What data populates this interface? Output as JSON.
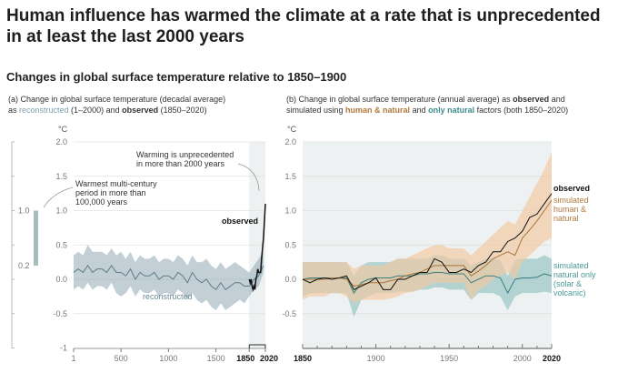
{
  "title": "Human influence has warmed the climate at a rate that is unprecedented in at least the last 2000 years",
  "subtitle": "Changes in global surface temperature relative to 1850–1900",
  "panel_a": {
    "line1": "(a) Change in global surface temperature (decadal average)",
    "l2_as": "as ",
    "l2_rec": "reconstructed",
    "l2_mid": " (1–2000) and ",
    "l2_obs": "observed",
    "l2_end": " (1850–2020)",
    "ann_unprecedented": [
      "Warming is unprecedented",
      "in more than 2000 years"
    ],
    "ann_warmest": [
      "Warmest multi-century",
      "period in more than",
      "100,000 years"
    ],
    "label_observed": "observed",
    "label_reconstructed": "reconstructed",
    "scale_bar": {
      "top": "1.0",
      "bottom": "0.2"
    }
  },
  "panel_b": {
    "l1_a": "(b) Change in global surface temperature (annual average) as ",
    "l1_obs": "observed",
    "l1_end": " and",
    "l2_a": "simulated using ",
    "l2_hum": "human & natural",
    "l2_mid": " and ",
    "l2_nat": "only natural",
    "l2_end": " factors (both 1850–2020)",
    "label_observed": "observed",
    "label_human": [
      "simulated",
      "human &",
      "natural"
    ],
    "label_natural": [
      "simulated",
      "natural only",
      "(solar &",
      "volcanic)"
    ]
  },
  "colors": {
    "reconstructed": "#8fa9b4",
    "observed": "#111111",
    "human": "#f2c7a0",
    "human_line": "#a8763c",
    "natural": "#8cc0bf",
    "natural_line": "#3d7f7c",
    "shade": "#eef1f1"
  },
  "chart_data": [
    {
      "type": "line",
      "title": "(a) decadal average",
      "ylabel": "°C",
      "ylim": [
        -1,
        2
      ],
      "xlim": [
        1,
        2020
      ],
      "yticks": [
        "2.0",
        "1.5",
        "1.0",
        "0.5",
        "0.0",
        "-0.5",
        "-1"
      ],
      "ytick_values": [
        2,
        1.5,
        1,
        0.5,
        0,
        -0.5,
        -1
      ],
      "xticks": [
        "1",
        "500",
        "1000",
        "1500",
        "1850",
        "2020"
      ],
      "xtick_values": [
        1,
        500,
        1000,
        1500,
        1850,
        2020
      ],
      "reconstructed": {
        "x": [
          1,
          50,
          100,
          150,
          200,
          250,
          300,
          350,
          400,
          450,
          500,
          550,
          600,
          650,
          700,
          750,
          800,
          850,
          900,
          950,
          1000,
          1050,
          1100,
          1150,
          1200,
          1250,
          1300,
          1350,
          1400,
          1450,
          1500,
          1550,
          1600,
          1650,
          1700,
          1750,
          1800,
          1850,
          1900,
          1950,
          2000
        ],
        "mean": [
          0.1,
          0.15,
          0.1,
          0.2,
          0.1,
          0.15,
          0.15,
          0.1,
          0.2,
          0.1,
          0.1,
          0.05,
          0.15,
          0.0,
          0.1,
          0.05,
          0.05,
          0.1,
          0.0,
          0.05,
          0.05,
          0.0,
          0.1,
          0.05,
          -0.05,
          0.1,
          0.0,
          -0.05,
          0.0,
          -0.1,
          -0.15,
          -0.05,
          -0.15,
          -0.1,
          -0.05,
          -0.05,
          -0.1,
          -0.1,
          0.0,
          0.05,
          0.2
        ],
        "low": [
          -0.15,
          -0.1,
          -0.15,
          -0.05,
          -0.15,
          -0.1,
          -0.1,
          -0.15,
          -0.05,
          -0.2,
          -0.25,
          -0.2,
          -0.1,
          -0.25,
          -0.15,
          -0.2,
          -0.2,
          -0.15,
          -0.25,
          -0.2,
          -0.2,
          -0.25,
          -0.15,
          -0.2,
          -0.3,
          -0.2,
          -0.3,
          -0.35,
          -0.3,
          -0.4,
          -0.45,
          -0.35,
          -0.45,
          -0.4,
          -0.35,
          -0.3,
          -0.35,
          -0.25,
          -0.15,
          -0.1,
          0.1
        ],
        "high": [
          0.35,
          0.4,
          0.35,
          0.5,
          0.4,
          0.4,
          0.4,
          0.35,
          0.45,
          0.35,
          0.4,
          0.3,
          0.4,
          0.25,
          0.35,
          0.3,
          0.3,
          0.35,
          0.25,
          0.3,
          0.3,
          0.25,
          0.35,
          0.3,
          0.2,
          0.35,
          0.25,
          0.25,
          0.3,
          0.2,
          0.15,
          0.25,
          0.15,
          0.2,
          0.25,
          0.2,
          0.15,
          0.1,
          0.2,
          0.3,
          0.4
        ]
      },
      "observed": {
        "x": [
          1850,
          1860,
          1870,
          1880,
          1890,
          1900,
          1910,
          1920,
          1930,
          1940,
          1950,
          1960,
          1970,
          1980,
          1990,
          2000,
          2010,
          2020
        ],
        "values": [
          0.0,
          -0.05,
          0.0,
          -0.1,
          -0.15,
          -0.1,
          -0.15,
          0.0,
          0.05,
          0.15,
          0.1,
          0.1,
          0.1,
          0.3,
          0.45,
          0.6,
          0.85,
          1.1
        ]
      },
      "scale_bar": {
        "low": 0.2,
        "high": 1.0
      }
    },
    {
      "type": "line",
      "title": "(b) annual average",
      "ylabel": "°C",
      "ylim": [
        -1,
        2
      ],
      "xlim": [
        1850,
        2020
      ],
      "yticks": [
        "2.0",
        "1.5",
        "1.0",
        "0.5",
        "0.0",
        "-0.5"
      ],
      "ytick_values": [
        2,
        1.5,
        1,
        0.5,
        0,
        -0.5
      ],
      "xticks": [
        "1850",
        "1900",
        "1950",
        "2000",
        "2020"
      ],
      "xtick_values": [
        1850,
        1900,
        1950,
        2000,
        2020
      ],
      "x": [
        1850,
        1855,
        1860,
        1865,
        1870,
        1875,
        1880,
        1885,
        1890,
        1895,
        1900,
        1905,
        1910,
        1915,
        1920,
        1925,
        1930,
        1935,
        1940,
        1945,
        1950,
        1955,
        1960,
        1965,
        1970,
        1975,
        1980,
        1985,
        1990,
        1995,
        2000,
        2005,
        2010,
        2015,
        2020
      ],
      "series": [
        {
          "name": "observed",
          "values": [
            0.0,
            -0.05,
            0.0,
            0.02,
            0.0,
            0.02,
            0.05,
            -0.15,
            -0.1,
            -0.05,
            0.02,
            -0.15,
            -0.15,
            0.0,
            0.0,
            0.05,
            0.1,
            0.1,
            0.3,
            0.25,
            0.1,
            0.1,
            0.15,
            0.1,
            0.2,
            0.25,
            0.4,
            0.4,
            0.55,
            0.6,
            0.7,
            0.9,
            0.95,
            1.1,
            1.25
          ]
        },
        {
          "name": "simulated human & natural",
          "mean": [
            0.0,
            0.0,
            0.0,
            0.0,
            0.02,
            0.02,
            0.0,
            -0.1,
            -0.08,
            -0.05,
            -0.05,
            -0.05,
            -0.02,
            0.0,
            0.05,
            0.08,
            0.1,
            0.15,
            0.2,
            0.2,
            0.2,
            0.2,
            0.2,
            0.05,
            0.12,
            0.2,
            0.3,
            0.35,
            0.4,
            0.35,
            0.6,
            0.72,
            0.85,
            1.0,
            1.15
          ],
          "low": [
            -0.3,
            -0.25,
            -0.25,
            -0.25,
            -0.2,
            -0.2,
            -0.25,
            -0.35,
            -0.3,
            -0.3,
            -0.3,
            -0.3,
            -0.28,
            -0.25,
            -0.2,
            -0.18,
            -0.15,
            -0.1,
            -0.05,
            -0.05,
            -0.05,
            -0.05,
            -0.05,
            -0.3,
            -0.15,
            -0.1,
            0.0,
            0.05,
            0.1,
            0.0,
            0.25,
            0.35,
            0.45,
            0.55,
            0.6
          ],
          "high": [
            0.25,
            0.25,
            0.25,
            0.25,
            0.25,
            0.25,
            0.25,
            0.15,
            0.2,
            0.2,
            0.2,
            0.2,
            0.25,
            0.3,
            0.3,
            0.35,
            0.4,
            0.45,
            0.5,
            0.5,
            0.45,
            0.45,
            0.45,
            0.35,
            0.45,
            0.55,
            0.65,
            0.75,
            0.85,
            0.8,
            1.0,
            1.2,
            1.4,
            1.6,
            1.85
          ]
        },
        {
          "name": "simulated natural only (solar & volcanic)",
          "mean": [
            0.0,
            0.02,
            0.02,
            0.02,
            0.02,
            0.02,
            0.02,
            -0.2,
            -0.05,
            0.0,
            0.02,
            0.02,
            0.02,
            0.05,
            0.05,
            0.05,
            0.08,
            0.08,
            0.1,
            0.1,
            0.08,
            0.08,
            0.08,
            -0.05,
            0.0,
            0.05,
            0.05,
            0.02,
            -0.2,
            0.0,
            0.02,
            0.02,
            0.03,
            0.08,
            0.05
          ],
          "low": [
            -0.25,
            -0.2,
            -0.2,
            -0.2,
            -0.2,
            -0.2,
            -0.2,
            -0.55,
            -0.3,
            -0.25,
            -0.2,
            -0.2,
            -0.2,
            -0.18,
            -0.18,
            -0.18,
            -0.15,
            -0.15,
            -0.12,
            -0.12,
            -0.15,
            -0.15,
            -0.15,
            -0.3,
            -0.2,
            -0.2,
            -0.2,
            -0.25,
            -0.45,
            -0.25,
            -0.2,
            -0.2,
            -0.2,
            -0.18,
            -0.2
          ],
          "high": [
            0.25,
            0.25,
            0.25,
            0.25,
            0.25,
            0.25,
            0.25,
            0.05,
            0.2,
            0.25,
            0.25,
            0.25,
            0.25,
            0.3,
            0.3,
            0.3,
            0.3,
            0.3,
            0.35,
            0.35,
            0.3,
            0.3,
            0.3,
            0.2,
            0.25,
            0.3,
            0.3,
            0.28,
            0.05,
            0.28,
            0.3,
            0.3,
            0.3,
            0.35,
            0.3
          ]
        }
      ]
    }
  ]
}
